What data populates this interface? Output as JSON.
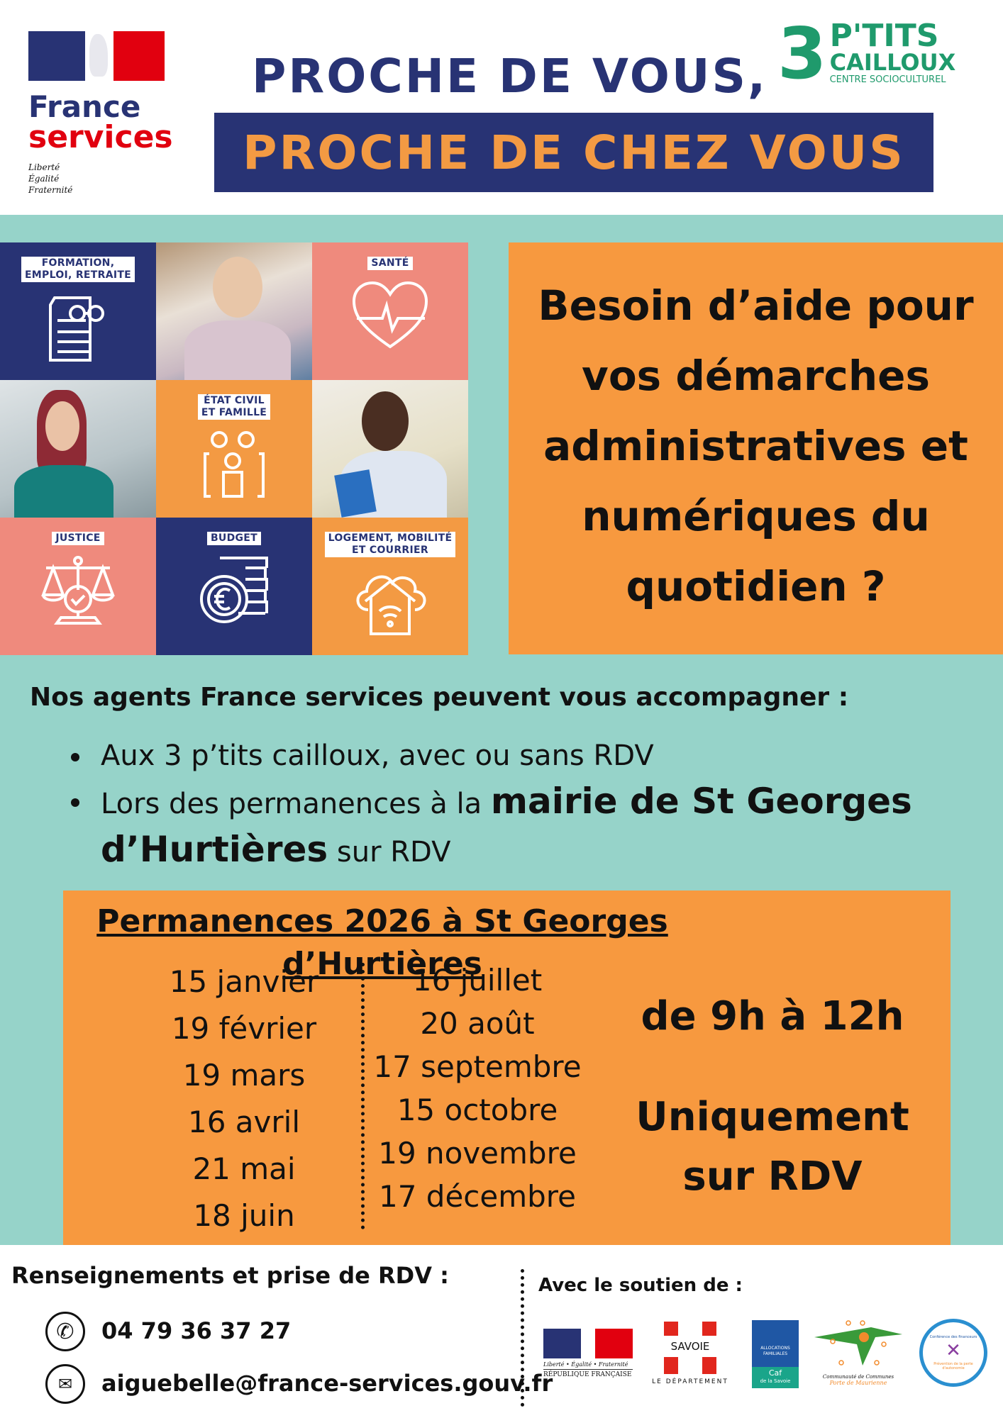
{
  "header": {
    "france_services": {
      "line1": "France",
      "line2": "services",
      "motto": [
        "Liberté",
        "Égalité",
        "Fraternité"
      ]
    },
    "title_line1": "PROCHE DE VOUS,",
    "title_line2": "PROCHE DE CHEZ VOUS",
    "partner_logo": {
      "number": "3",
      "line1": "P'TITS",
      "line2": "CAILLOUX",
      "line3": "CENTRE SOCIOCULTUREL"
    }
  },
  "tiles": [
    {
      "label": "FORMATION,\nEMPLOI, RETRAITE",
      "icon": "document-glasses-icon"
    },
    {
      "label": "SANTÉ",
      "icon": "heart-pulse-icon"
    },
    {
      "label": "ÉTAT CIVIL\nET FAMILLE",
      "icon": "family-icon"
    },
    {
      "label": "JUSTICE",
      "icon": "scales-icon"
    },
    {
      "label": "BUDGET",
      "icon": "euro-coins-icon"
    },
    {
      "label": "LOGEMENT, MOBILITÉ\nET COURRIER",
      "icon": "house-wifi-icon"
    }
  ],
  "question": [
    "Besoin d’aide pour",
    "vos démarches",
    "administratives et",
    "numériques du",
    "quotidien ?"
  ],
  "agents": {
    "intro": "Nos agents France services peuvent vous accompagner :",
    "bullet1": "Aux 3 p’tits cailloux, avec ou sans RDV",
    "bullet2_pre": "Lors des permanences à la ",
    "bullet2_bold": "mairie de St Georges d’Hurtières",
    "bullet2_post": " sur RDV"
  },
  "schedule": {
    "title": "Permanences 2026 à St Georges d’Hurtières",
    "dates_left": [
      "15 janvier",
      "19 février",
      "19 mars",
      "16 avril",
      "21 mai",
      "18 juin"
    ],
    "dates_right": [
      "16 juillet",
      "20 août",
      "17 septembre",
      "15 octobre",
      "19 novembre",
      "17 décembre"
    ],
    "hours": "de 9h à 12h",
    "note_line1": "Uniquement",
    "note_line2": "sur RDV"
  },
  "contact": {
    "title": "Renseignements et prise de RDV :",
    "phone": "04 79 36 37 27",
    "email": "aiguebelle@france-services.gouv.fr"
  },
  "support": {
    "title": "Avec le soutien de :",
    "logos": {
      "rf": {
        "motto": "Liberté • Égalité • Fraternité",
        "name": "RÉPUBLIQUE FRANÇAISE"
      },
      "savoie": {
        "name": "SAVOIE",
        "sub": "LE DÉPARTEMENT"
      },
      "caf": {
        "line1": "ALLOCATIONS",
        "line2": "FAMILIALES",
        "line3": "Caf",
        "line4": "de la Savoie"
      },
      "ccpm": {
        "line1": "Communauté de Communes",
        "line2": "Porte de Maurienne"
      },
      "cdf": {
        "top": "Conférence des financeurs",
        "bottom": "Prévention de la perte d'autonomie"
      }
    }
  },
  "colors": {
    "navy": "#283374",
    "orange": "#f39a43",
    "pink": "#ef8a7d",
    "teal": "#96d3c9",
    "green": "#1f9a6c",
    "red": "#e1000f"
  }
}
